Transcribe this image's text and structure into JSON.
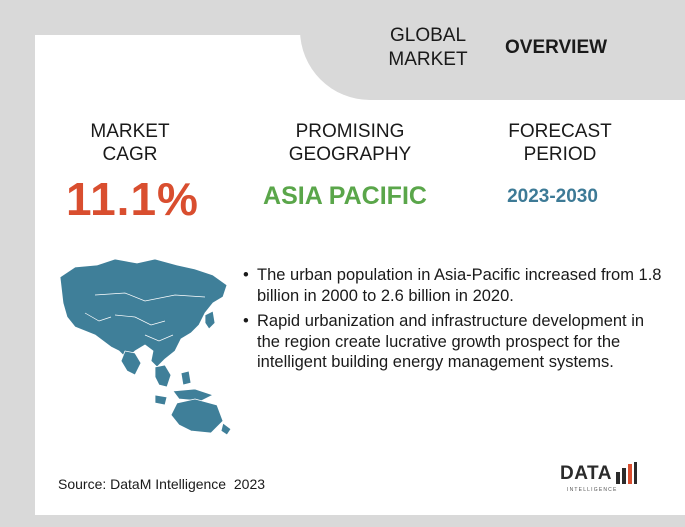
{
  "header": {
    "global_market": "GLOBAL\nMARKET",
    "overview": "OVERVIEW"
  },
  "stats": {
    "cagr_label": "MARKET\nCAGR",
    "cagr_value": "11.1%",
    "geo_label": "PROMISING\nGEOGRAPHY",
    "geo_value": "ASIA PACIFIC",
    "forecast_label": "FORECAST\nPERIOD",
    "forecast_value": "2023-2030"
  },
  "bullets": [
    "The urban population in Asia-Pacific increased from 1.8 billion in 2000 to 2.6 billion in 2020.",
    "Rapid urbanization and infrastructure development in the region create lucrative growth prospect for the intelligent building energy management systems."
  ],
  "bullet_symbol": "•",
  "source": "Source: DataM Intelligence  2023",
  "logo": {
    "text": "DATA",
    "subtext": "INTELLIGENCE"
  },
  "colors": {
    "cagr": "#d94e2f",
    "geography": "#5aa64a",
    "forecast": "#3d7a96",
    "map": "#3f7f99",
    "background": "#d9d9d9",
    "logo_bar_red": "#d94e2f"
  },
  "icons": {
    "map": "asia-pacific-map-icon",
    "logo": "datam-logo-icon"
  }
}
